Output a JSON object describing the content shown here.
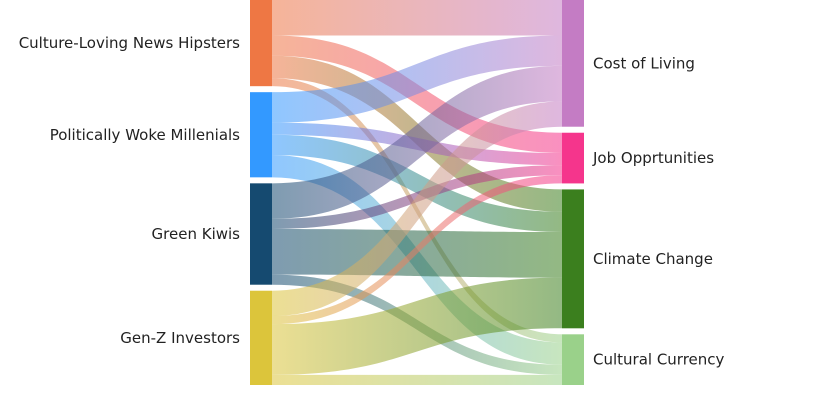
{
  "chart_data": {
    "type": "sankey",
    "sources": [
      {
        "name": "Culture-Loving News Hipsters",
        "color": "#ee7744"
      },
      {
        "name": "Politically Woke Millenials",
        "color": "#3399ff"
      },
      {
        "name": "Green Kiwis",
        "color": "#154a70"
      },
      {
        "name": "Gen-Z Investors",
        "color": "#dcc53b"
      }
    ],
    "targets": [
      {
        "name": "Cost of Living",
        "color": "#c47cc4"
      },
      {
        "name": "Job Opprtunities",
        "color": "#f5358c"
      },
      {
        "name": "Climate Change",
        "color": "#3b7f1e"
      },
      {
        "name": "Cultural Currency",
        "color": "#9ad18a"
      }
    ],
    "links": [
      {
        "source": 0,
        "target": 0,
        "value": 35
      },
      {
        "source": 0,
        "target": 1,
        "value": 20
      },
      {
        "source": 0,
        "target": 2,
        "value": 22
      },
      {
        "source": 0,
        "target": 3,
        "value": 8
      },
      {
        "source": 1,
        "target": 0,
        "value": 30
      },
      {
        "source": 1,
        "target": 1,
        "value": 12
      },
      {
        "source": 1,
        "target": 2,
        "value": 20
      },
      {
        "source": 1,
        "target": 3,
        "value": 22
      },
      {
        "source": 2,
        "target": 0,
        "value": 35
      },
      {
        "source": 2,
        "target": 1,
        "value": 10
      },
      {
        "source": 2,
        "target": 2,
        "value": 45
      },
      {
        "source": 2,
        "target": 3,
        "value": 10
      },
      {
        "source": 3,
        "target": 0,
        "value": 25
      },
      {
        "source": 3,
        "target": 1,
        "value": 8
      },
      {
        "source": 3,
        "target": 2,
        "value": 50
      },
      {
        "source": 3,
        "target": 3,
        "value": 10
      }
    ],
    "link_opacity": 0.55,
    "node_label_side": {
      "sources": "left",
      "targets": "right"
    }
  }
}
